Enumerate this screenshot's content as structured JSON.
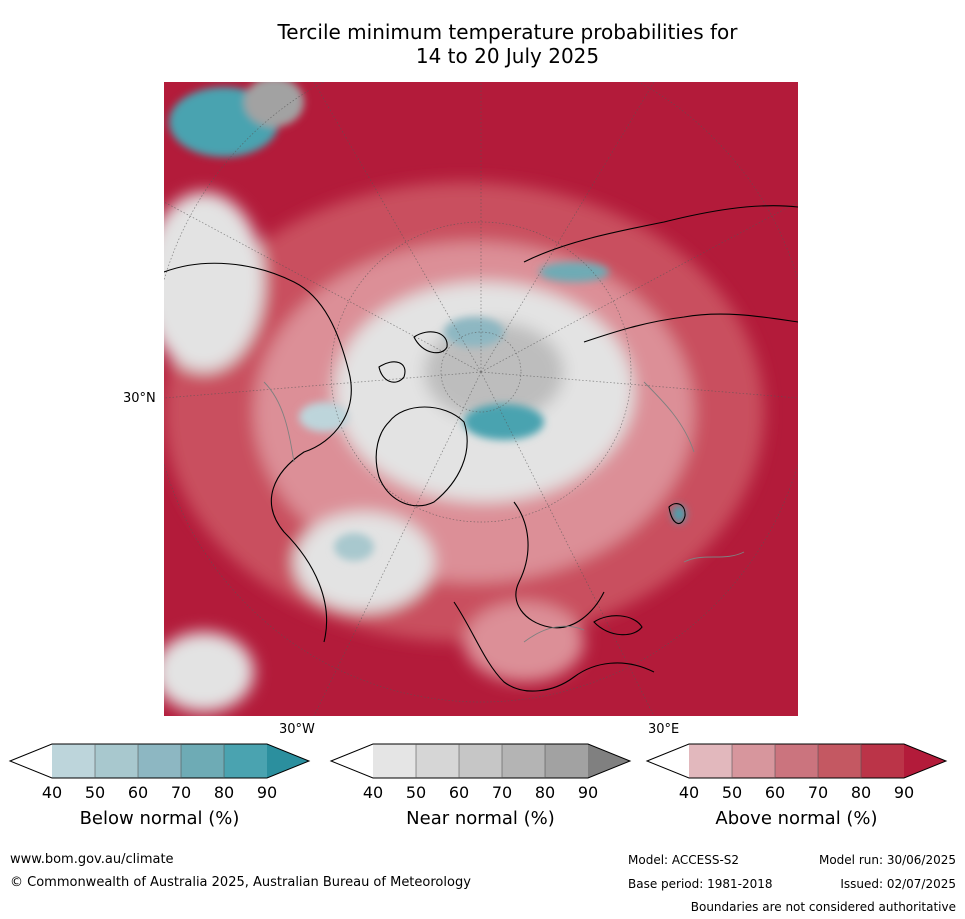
{
  "title": {
    "line1": "Tercile minimum temperature probabilities for",
    "line2": "14 to 20 July 2025"
  },
  "map": {
    "labels": {
      "lat30": "30°N",
      "lon30w": "30°W",
      "lon30e": "30°E"
    },
    "colors": {
      "ocean_warm": "#b31b3a",
      "warm_mid": "#c9505f",
      "warm_light": "#dc8f97",
      "near_light": "#e3e3e3",
      "near_mid": "#bdbdbd",
      "cool": "#4aa3b0",
      "coastline": "#000000",
      "border": "#808080"
    }
  },
  "colorbars": [
    {
      "name": "Below normal (%)",
      "ticks": [
        "40",
        "50",
        "60",
        "70",
        "80",
        "90"
      ],
      "colors": [
        "#ffffff",
        "#bdd5db",
        "#a8c8ce",
        "#8db7c2",
        "#6eabb5",
        "#4aa3b0",
        "#2b8f9e"
      ]
    },
    {
      "name": "Near normal (%)",
      "ticks": [
        "40",
        "50",
        "60",
        "70",
        "80",
        "90"
      ],
      "colors": [
        "#ffffff",
        "#e5e5e5",
        "#d6d6d6",
        "#c6c6c6",
        "#b4b4b4",
        "#a2a2a2",
        "#808080"
      ]
    },
    {
      "name": "Above normal (%)",
      "ticks": [
        "40",
        "50",
        "60",
        "70",
        "80",
        "90"
      ],
      "colors": [
        "#ffffff",
        "#e2b8bd",
        "#d7969d",
        "#cb747e",
        "#c45862",
        "#bb3448",
        "#b31b3a"
      ]
    }
  ],
  "footer": {
    "url": "www.bom.gov.au/climate",
    "copyright": "© Commonwealth of Australia 2025, Australian Bureau of Meteorology",
    "model": "Model: ACCESS-S2",
    "model_run": "Model run: 30/06/2025",
    "base_period": "Base period: 1981-2018",
    "issued": "Issued: 02/07/2025",
    "disclaimer": "Boundaries are not considered authoritative"
  }
}
